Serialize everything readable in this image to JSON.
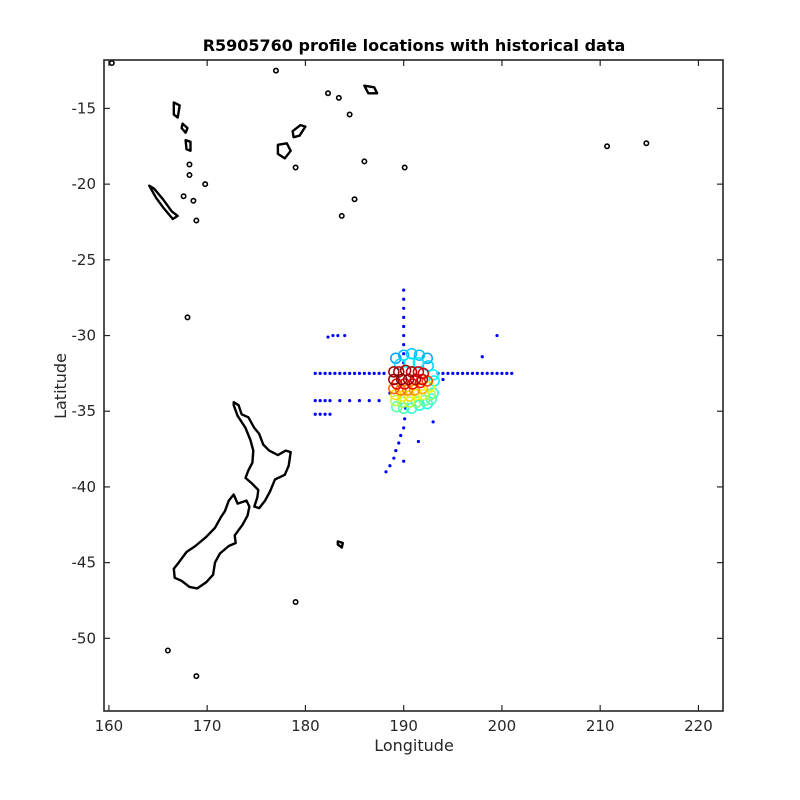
{
  "chart_data": {
    "type": "scatter",
    "title": "R5905760 profile locations with historical data",
    "xlabel": "Longitude",
    "ylabel": "Latitude",
    "xlim": [
      159.5,
      222.5
    ],
    "ylim": [
      -54.8,
      -11.8
    ],
    "xticks": [
      160,
      170,
      180,
      190,
      200,
      210,
      220
    ],
    "yticks": [
      -15,
      -20,
      -25,
      -30,
      -35,
      -40,
      -45,
      -50
    ],
    "grid": false,
    "legend": "none",
    "colors": {
      "coastline": "#000000",
      "historical": "#0000ff",
      "frame": "#262626"
    },
    "series": [
      {
        "kind": "historical",
        "points": [
          [
            190.0,
            -27.0
          ],
          [
            190.0,
            -27.6
          ],
          [
            190.0,
            -28.2
          ],
          [
            190.0,
            -28.8
          ],
          [
            190.0,
            -29.4
          ],
          [
            190.0,
            -30.0
          ],
          [
            190.0,
            -30.6
          ],
          [
            190.0,
            -31.2
          ],
          [
            190.0,
            -31.8
          ],
          [
            181.0,
            -32.5
          ],
          [
            181.5,
            -32.5
          ],
          [
            182.0,
            -32.5
          ],
          [
            182.5,
            -32.5
          ],
          [
            183.0,
            -32.5
          ],
          [
            183.5,
            -32.5
          ],
          [
            184.0,
            -32.5
          ],
          [
            184.5,
            -32.5
          ],
          [
            185.0,
            -32.5
          ],
          [
            185.5,
            -32.5
          ],
          [
            186.0,
            -32.5
          ],
          [
            186.5,
            -32.5
          ],
          [
            187.0,
            -32.5
          ],
          [
            187.5,
            -32.5
          ],
          [
            188.0,
            -32.5
          ],
          [
            193.5,
            -32.5
          ],
          [
            194.0,
            -32.5
          ],
          [
            194.5,
            -32.5
          ],
          [
            195.0,
            -32.5
          ],
          [
            195.5,
            -32.5
          ],
          [
            196.0,
            -32.5
          ],
          [
            196.5,
            -32.5
          ],
          [
            197.0,
            -32.5
          ],
          [
            197.5,
            -32.5
          ],
          [
            198.0,
            -32.5
          ],
          [
            198.5,
            -32.5
          ],
          [
            199.0,
            -32.5
          ],
          [
            199.5,
            -32.5
          ],
          [
            200.0,
            -32.5
          ],
          [
            200.5,
            -32.5
          ],
          [
            201.0,
            -32.5
          ],
          [
            181.0,
            -34.3
          ],
          [
            181.5,
            -34.3
          ],
          [
            182.0,
            -34.3
          ],
          [
            182.5,
            -34.3
          ],
          [
            183.5,
            -34.3
          ],
          [
            184.5,
            -34.3
          ],
          [
            185.5,
            -34.3
          ],
          [
            186.5,
            -34.3
          ],
          [
            187.5,
            -34.3
          ],
          [
            181.0,
            -35.2
          ],
          [
            181.5,
            -35.2
          ],
          [
            182.0,
            -35.2
          ],
          [
            182.5,
            -35.2
          ],
          [
            182.3,
            -30.1
          ],
          [
            182.8,
            -30.0
          ],
          [
            183.3,
            -30.0
          ],
          [
            184.0,
            -30.0
          ],
          [
            190.2,
            -34.8
          ],
          [
            190.1,
            -35.5
          ],
          [
            190.0,
            -36.1
          ],
          [
            189.7,
            -36.6
          ],
          [
            189.5,
            -37.1
          ],
          [
            189.2,
            -37.6
          ],
          [
            189.0,
            -38.1
          ],
          [
            188.6,
            -38.6
          ],
          [
            188.2,
            -39.0
          ],
          [
            190.0,
            -38.3
          ],
          [
            191.5,
            -37.0
          ],
          [
            193.0,
            -35.7
          ],
          [
            194.0,
            -32.9
          ],
          [
            198.0,
            -31.4
          ],
          [
            199.5,
            -30.0
          ],
          [
            188.6,
            -33.8
          ]
        ]
      },
      {
        "kind": "profiles",
        "points": [
          [
            189.2,
            -31.5,
            0.28
          ],
          [
            190.0,
            -31.3,
            0.3
          ],
          [
            190.8,
            -31.2,
            0.32
          ],
          [
            191.6,
            -31.3,
            0.31
          ],
          [
            192.4,
            -31.5,
            0.29
          ],
          [
            189.6,
            -31.9,
            0.34
          ],
          [
            190.6,
            -31.8,
            0.36
          ],
          [
            191.5,
            -31.8,
            0.35
          ],
          [
            192.5,
            -32.0,
            0.33
          ],
          [
            193.0,
            -32.6,
            0.38
          ],
          [
            189.0,
            -32.4,
            0.97
          ],
          [
            189.5,
            -32.4,
            0.95
          ],
          [
            190.2,
            -32.3,
            0.96
          ],
          [
            190.8,
            -32.4,
            0.94
          ],
          [
            191.5,
            -32.4,
            0.92
          ],
          [
            192.0,
            -32.5,
            0.9
          ],
          [
            189.0,
            -32.9,
            0.98
          ],
          [
            189.8,
            -32.9,
            0.99
          ],
          [
            190.5,
            -32.9,
            0.97
          ],
          [
            191.2,
            -32.9,
            0.95
          ],
          [
            191.9,
            -32.9,
            0.93
          ],
          [
            189.3,
            -33.2,
            0.88
          ],
          [
            190.1,
            -33.2,
            0.9
          ],
          [
            190.9,
            -33.2,
            0.87
          ],
          [
            191.7,
            -33.1,
            0.86
          ],
          [
            192.4,
            -33.0,
            0.8
          ],
          [
            189.0,
            -33.5,
            0.78
          ],
          [
            189.7,
            -33.6,
            0.76
          ],
          [
            190.4,
            -33.6,
            0.74
          ],
          [
            191.1,
            -33.6,
            0.73
          ],
          [
            191.9,
            -33.5,
            0.7
          ],
          [
            192.6,
            -33.4,
            0.62
          ],
          [
            189.2,
            -33.9,
            0.66
          ],
          [
            189.9,
            -34.0,
            0.64
          ],
          [
            190.6,
            -34.0,
            0.66
          ],
          [
            191.3,
            -33.9,
            0.62
          ],
          [
            192.0,
            -33.9,
            0.58
          ],
          [
            192.7,
            -33.9,
            0.52
          ],
          [
            189.2,
            -34.3,
            0.55
          ],
          [
            189.9,
            -34.4,
            0.53
          ],
          [
            190.6,
            -34.4,
            0.56
          ],
          [
            191.3,
            -34.4,
            0.5
          ],
          [
            192.1,
            -34.3,
            0.48
          ],
          [
            192.8,
            -34.2,
            0.45
          ],
          [
            189.3,
            -34.7,
            0.46
          ],
          [
            190.0,
            -34.8,
            0.44
          ],
          [
            190.8,
            -34.8,
            0.42
          ],
          [
            191.6,
            -34.6,
            0.4
          ],
          [
            192.4,
            -34.5,
            0.4
          ],
          [
            193.0,
            -33.8,
            0.42
          ],
          [
            193.1,
            -33.0,
            0.36
          ]
        ]
      }
    ]
  }
}
